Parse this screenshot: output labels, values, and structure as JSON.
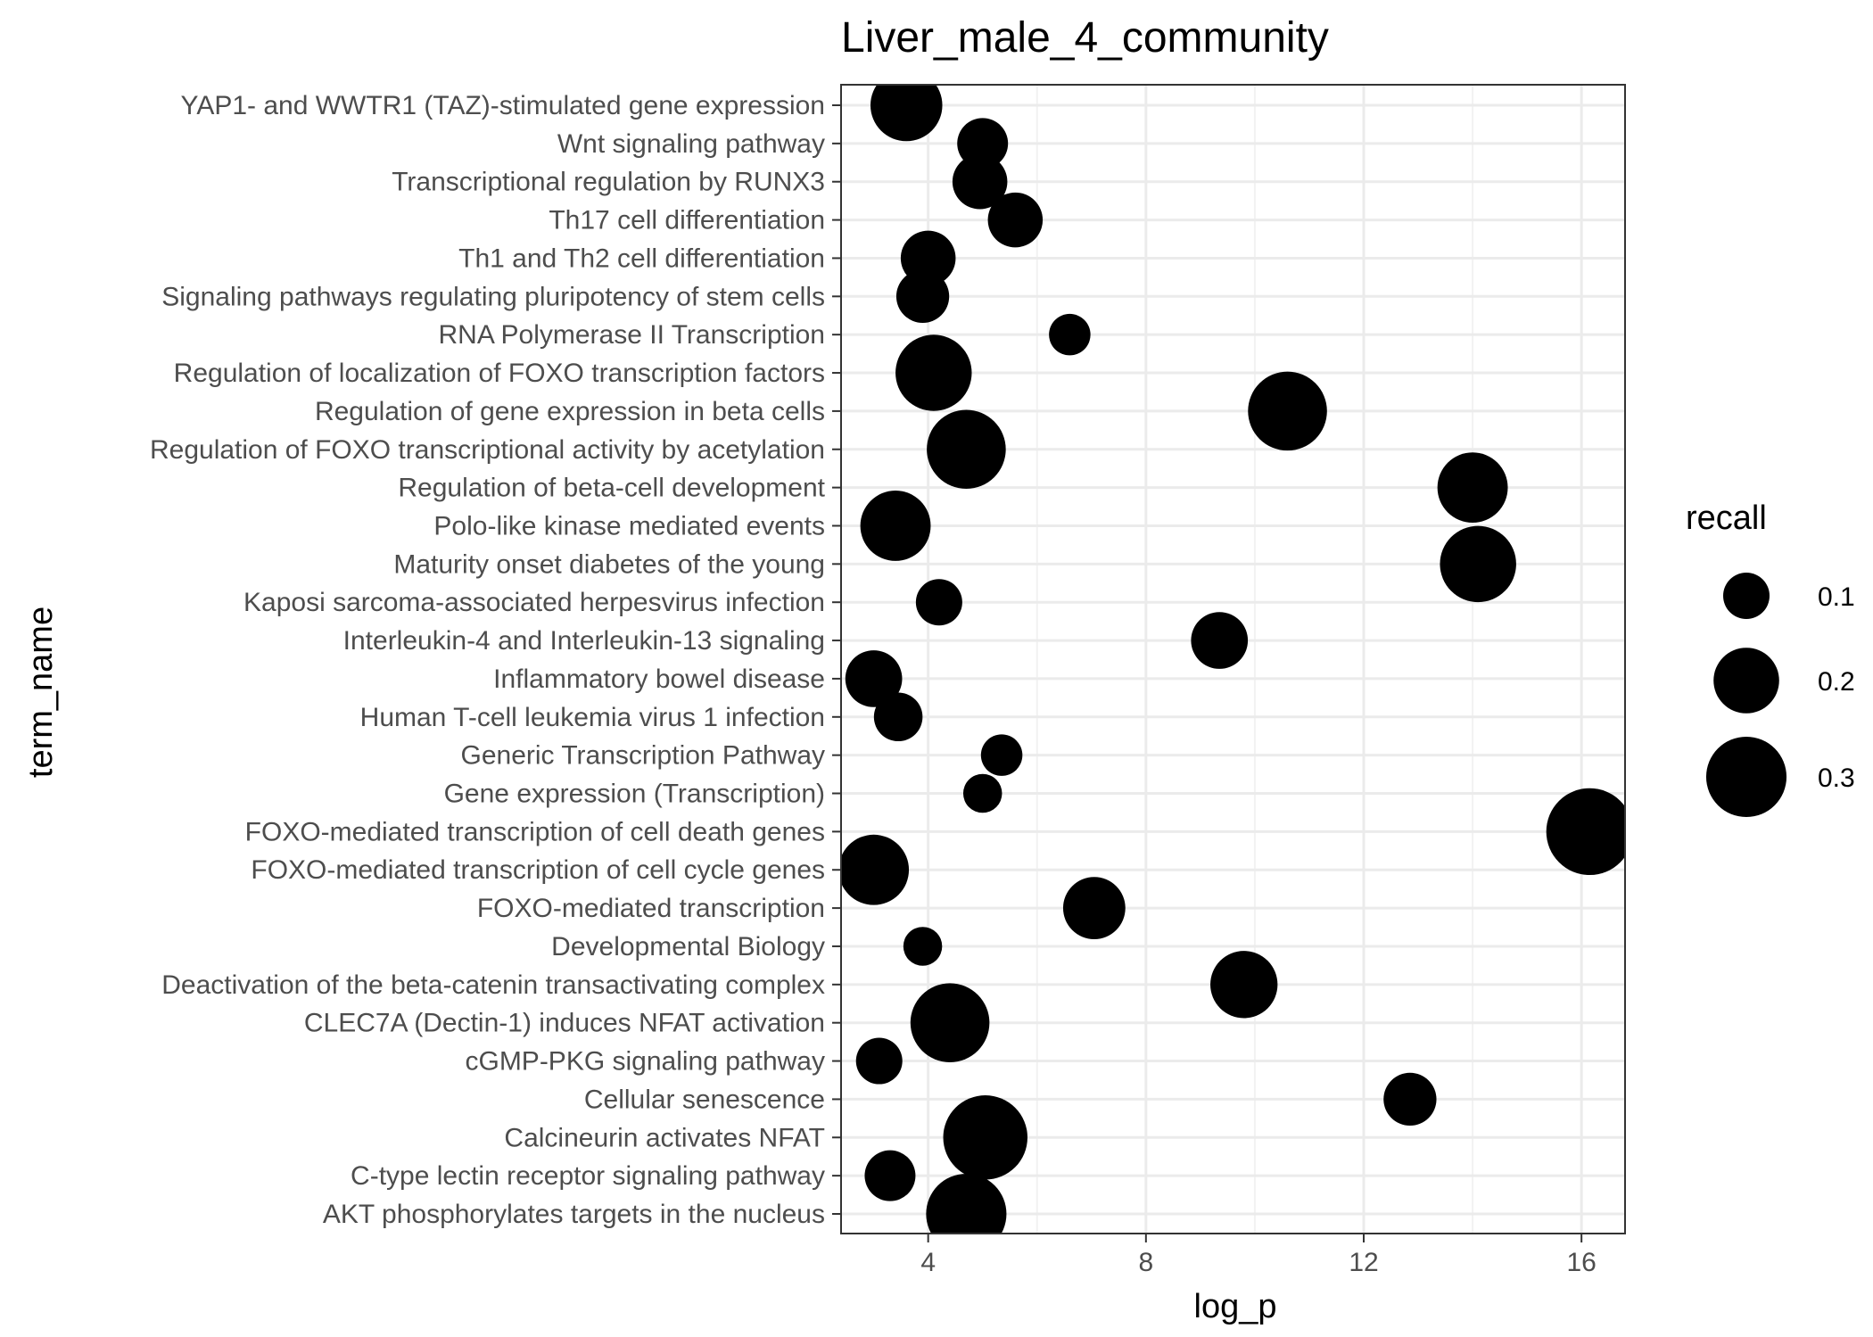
{
  "chart_data": {
    "type": "scatter",
    "title": "Liver_male_4_community",
    "xlabel": "log_p",
    "ylabel": "term_name",
    "xlim": [
      2.4,
      16.8
    ],
    "x_ticks": [
      4,
      8,
      12,
      16
    ],
    "size_variable": "recall",
    "size_legend": [
      0.1,
      0.2,
      0.3
    ],
    "grid": true,
    "legend_position": "right",
    "marker_color": "#000000",
    "points": [
      {
        "term": "YAP1- and WWTR1 (TAZ)-stimulated gene expression",
        "log_p": 3.6,
        "recall": 0.24
      },
      {
        "term": "Wnt signaling pathway",
        "log_p": 5.0,
        "recall": 0.12
      },
      {
        "term": "Transcriptional regulation by RUNX3",
        "log_p": 4.95,
        "recall": 0.14
      },
      {
        "term": "Th17 cell differentiation",
        "log_p": 5.6,
        "recall": 0.14
      },
      {
        "term": "Th1 and Th2 cell differentiation",
        "log_p": 4.0,
        "recall": 0.14
      },
      {
        "term": "Signaling pathways regulating pluripotency of stem cells",
        "log_p": 3.9,
        "recall": 0.13
      },
      {
        "term": "RNA Polymerase II Transcription",
        "log_p": 6.6,
        "recall": 0.08
      },
      {
        "term": "Regulation of localization of FOXO transcription factors",
        "log_p": 4.1,
        "recall": 0.27
      },
      {
        "term": "Regulation of gene expression in beta cells",
        "log_p": 10.6,
        "recall": 0.29
      },
      {
        "term": "Regulation of FOXO transcriptional activity by acetylation",
        "log_p": 4.7,
        "recall": 0.29
      },
      {
        "term": "Regulation of beta-cell development",
        "log_p": 14.0,
        "recall": 0.23
      },
      {
        "term": "Polo-like kinase mediated events",
        "log_p": 3.4,
        "recall": 0.23
      },
      {
        "term": "Maturity onset diabetes of the young",
        "log_p": 14.1,
        "recall": 0.27
      },
      {
        "term": "Kaposi sarcoma-associated herpesvirus infection",
        "log_p": 4.2,
        "recall": 0.1
      },
      {
        "term": "Interleukin-4 and Interleukin-13 signaling",
        "log_p": 9.35,
        "recall": 0.15
      },
      {
        "term": "Inflammatory bowel disease",
        "log_p": 3.0,
        "recall": 0.15
      },
      {
        "term": "Human T-cell leukemia virus 1 infection",
        "log_p": 3.45,
        "recall": 0.11
      },
      {
        "term": "Generic Transcription Pathway",
        "log_p": 5.35,
        "recall": 0.08
      },
      {
        "term": "Gene expression (Transcription)",
        "log_p": 5.0,
        "recall": 0.07
      },
      {
        "term": "FOXO-mediated transcription of cell death genes",
        "log_p": 16.15,
        "recall": 0.35
      },
      {
        "term": "FOXO-mediated transcription of cell cycle genes",
        "log_p": 3.0,
        "recall": 0.23
      },
      {
        "term": "FOXO-mediated transcription",
        "log_p": 7.05,
        "recall": 0.18
      },
      {
        "term": "Developmental Biology",
        "log_p": 3.9,
        "recall": 0.07
      },
      {
        "term": "Deactivation of the beta-catenin transactivating complex",
        "log_p": 9.8,
        "recall": 0.21
      },
      {
        "term": "CLEC7A (Dectin-1) induces NFAT activation",
        "log_p": 4.4,
        "recall": 0.29
      },
      {
        "term": "cGMP-PKG signaling pathway",
        "log_p": 3.1,
        "recall": 0.1
      },
      {
        "term": "Cellular senescence",
        "log_p": 12.85,
        "recall": 0.13
      },
      {
        "term": "Calcineurin activates NFAT",
        "log_p": 5.05,
        "recall": 0.33
      },
      {
        "term": "C-type lectin receptor signaling pathway",
        "log_p": 3.3,
        "recall": 0.12
      },
      {
        "term": "AKT phosphorylates targets in the nucleus",
        "log_p": 4.7,
        "recall": 0.3
      }
    ]
  }
}
